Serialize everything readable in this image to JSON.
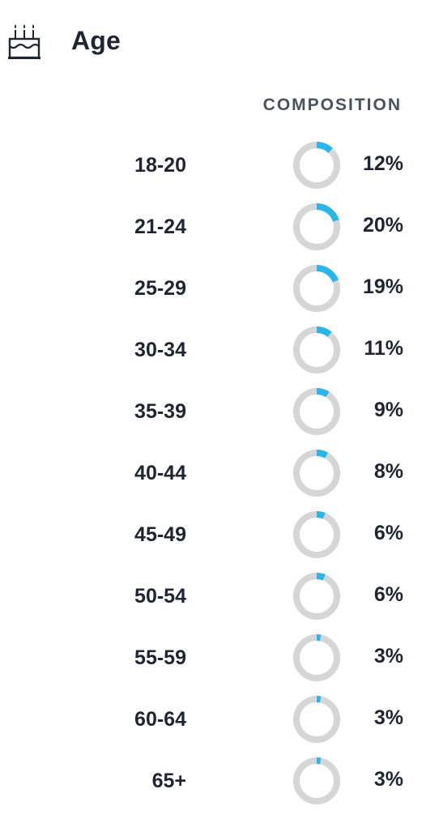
{
  "header": {
    "title": "Age",
    "icon": "birthday-cake-icon"
  },
  "colors": {
    "accent": "#29b6e8",
    "track": "#d6d6d6",
    "text": "#1f2533",
    "muted": "#4a5260"
  },
  "chart_data": {
    "type": "pie",
    "title": "Age",
    "column_header": "COMPOSITION",
    "categories": [
      "18-20",
      "21-24",
      "25-29",
      "30-34",
      "35-39",
      "40-44",
      "45-49",
      "50-54",
      "55-59",
      "60-64",
      "65+"
    ],
    "values": [
      12,
      20,
      19,
      11,
      9,
      8,
      6,
      6,
      3,
      3,
      3
    ],
    "value_labels": [
      "12%",
      "20%",
      "19%",
      "11%",
      "9%",
      "8%",
      "6%",
      "6%",
      "3%",
      "3%",
      "3%"
    ],
    "unit": "%"
  }
}
